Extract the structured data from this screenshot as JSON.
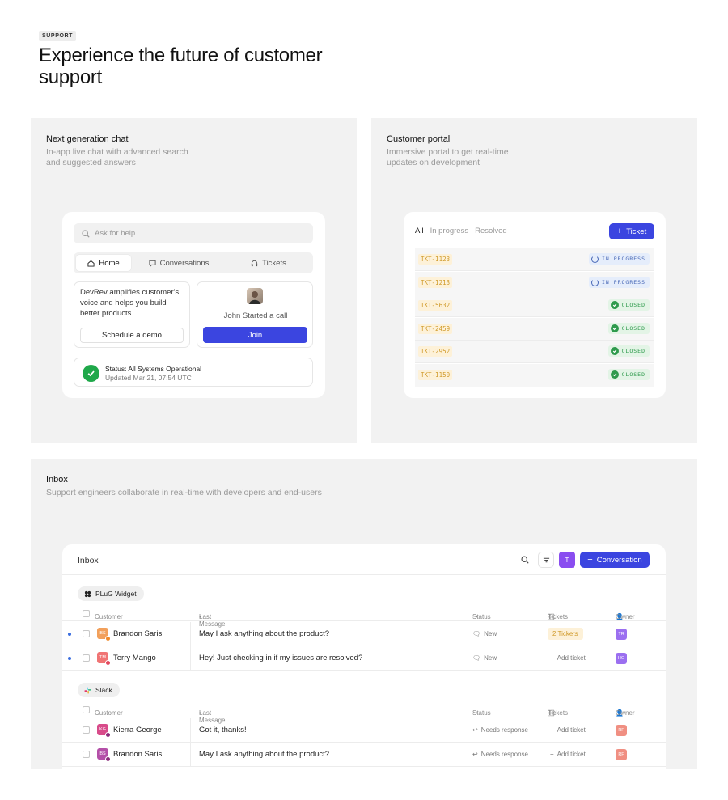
{
  "eyebrow": "SUPPORT",
  "hero_title": "Experience the future of customer support",
  "chat_panel": {
    "title": "Next generation chat",
    "description": "In-app live chat with advanced search and suggested answers",
    "search_placeholder": "Ask for help",
    "tabs": [
      {
        "label": "Home",
        "icon": "home-icon",
        "active": true
      },
      {
        "label": "Conversations",
        "icon": "chat-bubble-icon",
        "active": false
      },
      {
        "label": "Tickets",
        "icon": "headset-icon",
        "active": false
      }
    ],
    "promo_text": "DevRev amplifies customer's voice and helps you build better products.",
    "demo_button": "Schedule a demo",
    "call_text": "John Started a call",
    "join_button": "Join",
    "status_title": "Status: All Systems Operational",
    "status_updated": "Updated Mar 21, 07:54 UTC"
  },
  "portal_panel": {
    "title": "Customer portal",
    "description": "Immersive portal to get real-time updates on development",
    "tabs": [
      "All",
      "In progress",
      "Resolved"
    ],
    "ticket_button": "Ticket",
    "tickets": [
      {
        "id": "TKT-1123",
        "status": "IN PROGRESS"
      },
      {
        "id": "TKT-1213",
        "status": "IN PROGRESS"
      },
      {
        "id": "TKT-5632",
        "status": "CLOSED"
      },
      {
        "id": "TKT-2459",
        "status": "CLOSED"
      },
      {
        "id": "TKT-2952",
        "status": "CLOSED"
      },
      {
        "id": "TKT-1150",
        "status": "CLOSED"
      }
    ]
  },
  "inbox_panel": {
    "title": "Inbox",
    "description": "Support engineers collaborate in real-time with developers and end-users",
    "header_title": "Inbox",
    "avatar_letter": "T",
    "conversation_button": "Conversation",
    "columns": {
      "customer": "Customer",
      "last_message": "Last Message",
      "status": "Status",
      "tickets": "Tickets",
      "owner": "Owner"
    },
    "groups": [
      {
        "name": "PLuG Widget",
        "rows": [
          {
            "initials": "BS",
            "name": "Brandon Saris",
            "message": "May I ask anything about the product?",
            "status": "New",
            "tickets": "2 Tickets",
            "owner": "TR",
            "unread": true
          },
          {
            "initials": "TM",
            "name": "Terry Mango",
            "message": "Hey! Just checking in if my issues are resolved?",
            "status": "New",
            "tickets": "Add ticket",
            "owner": "HG",
            "unread": true
          }
        ]
      },
      {
        "name": "Slack",
        "rows": [
          {
            "initials": "KG",
            "name": "Kierra George",
            "message": "Got it, thanks!",
            "status": "Needs response",
            "tickets": "Add ticket",
            "owner": "RF",
            "unread": false
          },
          {
            "initials": "BS",
            "name": "Brandon Saris",
            "message": "May I ask anything about the product?",
            "status": "Needs response",
            "tickets": "Add ticket",
            "owner": "RF",
            "unread": false
          }
        ]
      }
    ]
  },
  "colors": {
    "accent": "#3b45e0",
    "success": "#1fa84a",
    "ticket_amber": "#d09a2a",
    "panel_bg": "#f2f2f2"
  }
}
